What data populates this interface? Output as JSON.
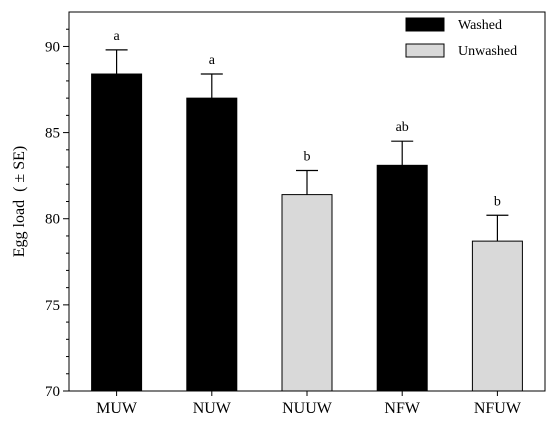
{
  "chart_data": {
    "type": "bar",
    "title": "",
    "xlabel": "",
    "ylabel": "Egg load  ( ± SE)",
    "ylim": [
      70,
      92
    ],
    "yticks": [
      70,
      75,
      80,
      85,
      90
    ],
    "categories": [
      "MUW",
      "NUW",
      "NUUW",
      "NFW",
      "NFUW"
    ],
    "values": [
      88.4,
      87.0,
      81.4,
      83.1,
      78.7
    ],
    "errors": [
      1.4,
      1.4,
      1.4,
      1.4,
      1.5
    ],
    "groups": [
      "Washed",
      "Washed",
      "Unwashed",
      "Washed",
      "Unwashed"
    ],
    "significance": [
      "a",
      "a",
      "b",
      "ab",
      "b"
    ],
    "legend": {
      "position": "top-right",
      "entries": [
        {
          "name": "Washed",
          "color": "#000000"
        },
        {
          "name": "Unwashed",
          "color": "#d9d9d9"
        }
      ]
    },
    "grid": false
  }
}
